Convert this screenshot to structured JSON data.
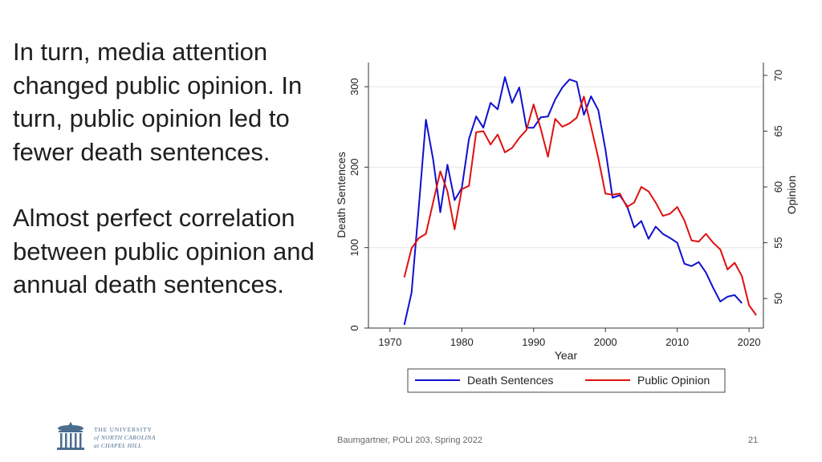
{
  "slide": {
    "paragraph1": "In turn, media attention changed public opinion. In turn, public opinion led to fewer death sentences.",
    "paragraph2": "Almost perfect correlation between public opinion and annual death sentences.",
    "footer": "Baumgartner, POLI 203, Spring 2022",
    "page_number": "21",
    "logo": {
      "line1": "THE UNIVERSITY",
      "line2": "of NORTH CAROLINA",
      "line3": "at CHAPEL HILL",
      "icon": "old-well-icon",
      "color": "#4b6d8f"
    }
  },
  "chart_data": {
    "type": "line",
    "title": "",
    "xlabel": "Year",
    "ylabel": "Death Sentences",
    "y2label": "Opinion",
    "xlim": [
      1967,
      2022
    ],
    "ylim": [
      0,
      330
    ],
    "y2lim": [
      47.35,
      71.15
    ],
    "xticks": [
      1970,
      1980,
      1990,
      2000,
      2010,
      2020
    ],
    "yticks": [
      0,
      100,
      200,
      300
    ],
    "y2ticks": [
      50,
      55,
      60,
      65,
      70
    ],
    "grid": true,
    "legend": "bottom",
    "series": [
      {
        "name": "Death Sentences",
        "axis": "left",
        "color": "#1010d0",
        "x": [
          1972,
          1973,
          1974,
          1975,
          1976,
          1977,
          1978,
          1979,
          1980,
          1981,
          1982,
          1983,
          1984,
          1985,
          1986,
          1987,
          1988,
          1989,
          1990,
          1991,
          1992,
          1993,
          1994,
          1995,
          1996,
          1997,
          1998,
          1999,
          2000,
          2001,
          2002,
          2003,
          2004,
          2005,
          2006,
          2007,
          2008,
          2009,
          2010,
          2011,
          2012,
          2013,
          2014,
          2015,
          2016,
          2017,
          2018,
          2019
        ],
        "values": [
          4,
          44,
          149,
          259,
          210,
          144,
          203,
          159,
          174,
          235,
          263,
          249,
          280,
          272,
          312,
          280,
          299,
          249,
          249,
          262,
          263,
          284,
          299,
          309,
          306,
          265,
          288,
          271,
          222,
          162,
          165,
          152,
          125,
          133,
          111,
          126,
          117,
          112,
          106,
          80,
          77,
          82,
          69,
          50,
          33,
          39,
          41,
          31
        ]
      },
      {
        "name": "Public Opinion",
        "axis": "right",
        "color": "#e01010",
        "x": [
          1972,
          1973,
          1974,
          1975,
          1976,
          1977,
          1978,
          1979,
          1980,
          1981,
          1982,
          1983,
          1984,
          1985,
          1986,
          1987,
          1988,
          1989,
          1990,
          1991,
          1992,
          1993,
          1994,
          1995,
          1996,
          1997,
          1998,
          1999,
          2000,
          2001,
          2002,
          2003,
          2004,
          2005,
          2006,
          2007,
          2008,
          2009,
          2010,
          2011,
          2012,
          2013,
          2014,
          2015,
          2016,
          2017,
          2018,
          2019,
          2020,
          2021
        ],
        "values": [
          51.9,
          54.5,
          55.4,
          55.8,
          58.6,
          61.4,
          59.6,
          56.2,
          59.8,
          60.1,
          64.9,
          65.0,
          63.8,
          64.7,
          63.1,
          63.5,
          64.4,
          65.1,
          67.4,
          65.2,
          62.7,
          66.1,
          65.4,
          65.7,
          66.2,
          68.1,
          65.4,
          62.6,
          59.4,
          59.3,
          59.4,
          58.2,
          58.6,
          60.0,
          59.6,
          58.6,
          57.4,
          57.6,
          58.2,
          57.0,
          55.2,
          55.1,
          55.8,
          55.0,
          54.4,
          52.6,
          53.2,
          52.0,
          49.4,
          48.5
        ]
      }
    ]
  }
}
